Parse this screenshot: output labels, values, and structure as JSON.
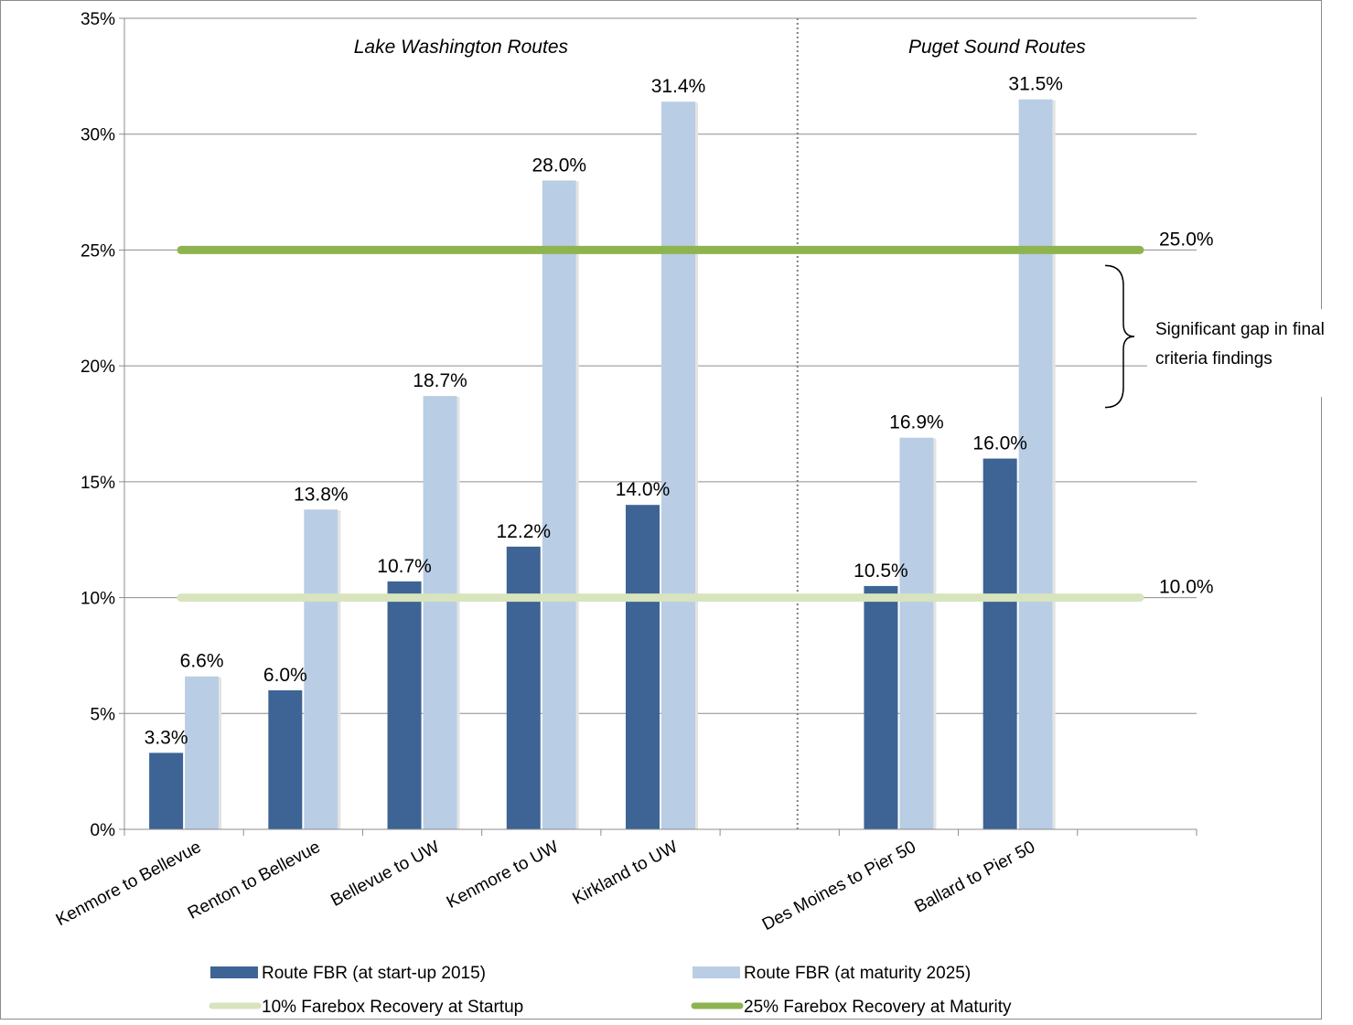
{
  "chart_data": {
    "type": "bar",
    "categories": [
      "Kenmore to Bellevue",
      "Renton to Bellevue",
      "Bellevue to UW",
      "Kenmore to UW",
      "Kirkland to UW",
      "",
      "Des Moines to Pier 50",
      "Ballard to Pier 50",
      ""
    ],
    "series": [
      {
        "name": "Route FBR (at start-up 2015)",
        "color": "#3d6495",
        "values": [
          3.3,
          6.0,
          10.7,
          12.2,
          14.0,
          null,
          10.5,
          16.0,
          null
        ],
        "labels": [
          "3.3%",
          "6.0%",
          "10.7%",
          "12.2%",
          "14.0%",
          "",
          "10.5%",
          "16.0%",
          ""
        ]
      },
      {
        "name": "Route FBR (at maturity 2025)",
        "color": "#b9cde5",
        "values": [
          6.6,
          13.8,
          18.7,
          28.0,
          31.4,
          null,
          16.9,
          31.5,
          null
        ],
        "labels": [
          "6.6%",
          "13.8%",
          "18.7%",
          "28.0%",
          "31.4%",
          "",
          "16.9%",
          "31.5%",
          ""
        ]
      }
    ],
    "reference_lines": [
      {
        "name": "10% Farebox Recovery at Startup",
        "value": 10.0,
        "label": "10.0%",
        "color": "#d7e4bd"
      },
      {
        "name": "25% Farebox Recovery at Maturity",
        "value": 25.0,
        "label": "25.0%",
        "color": "#8eb44f"
      }
    ],
    "ylim": [
      0,
      35
    ],
    "yticks": [
      0,
      5,
      10,
      15,
      20,
      25,
      30,
      35
    ],
    "ytick_labels": [
      "0%",
      "5%",
      "10%",
      "15%",
      "20%",
      "25%",
      "30%",
      "35%"
    ],
    "grid": true,
    "legend_position": "bottom",
    "section_divider_after_index": 5,
    "section_labels": [
      "Lake Washington Routes",
      "Puget Sound Routes"
    ],
    "annotation": {
      "lines": [
        "Significant gap in final",
        "criteria findings"
      ],
      "range": [
        10.0,
        25.0
      ]
    }
  }
}
